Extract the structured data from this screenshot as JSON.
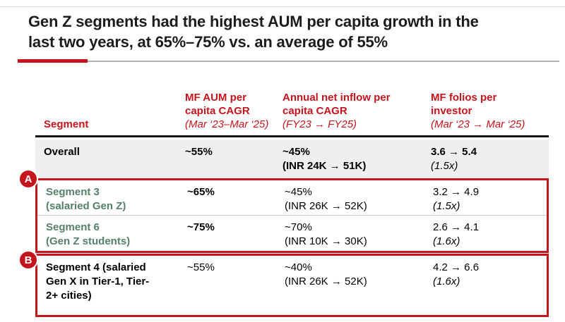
{
  "colors": {
    "accent_red": "#c4151d",
    "segment_green": "#568069",
    "overall_row_gray": "#efefef",
    "title_black": "#1c1c1c"
  },
  "header": {
    "title": "Gen Z segments had the highest AUM per capita growth in the\nlast two years, at 65%–75% vs. an average of 55%"
  },
  "table": {
    "headers": {
      "segment": "Segment",
      "col2_label": "MF AUM per capita CAGR",
      "col2_period": "(Mar ‘23–Mar ‘25)",
      "col3_label": "Annual net inflow per capita CAGR",
      "col3_period": "(FY23 → FY25)",
      "col4_label": "MF folios per investor",
      "col4_period": "(Mar ‘23 → Mar ‘25)"
    },
    "rows": {
      "overall": {
        "name": "Overall",
        "aum_cagr": "~55%",
        "inflow": "~45%\n(INR 24K → 51K)",
        "folios": "3.6 → 5.4",
        "folios_mult": "(1.5x)"
      },
      "segment3": {
        "name": "Segment 3\n(salaried Gen Z)",
        "aum_cagr": "~65%",
        "inflow": "~45%\n(INR 26K → 52K)",
        "folios": "3.2 → 4.9",
        "folios_mult": "(1.5x)"
      },
      "segment6": {
        "name": "Segment 6\n(Gen Z students)",
        "aum_cagr": "~75%",
        "inflow": "~70%\n(INR 10K → 30K)",
        "folios": "2.6 → 4.1",
        "folios_mult": "(1.6x)"
      },
      "segment4": {
        "name": "Segment 4 (salaried\nGen X in Tier-1, Tier-\n2+ cities)",
        "aum_cagr": "~55%",
        "inflow": "~40%\n(INR 26K → 52K)",
        "folios": "4.2 → 6.6",
        "folios_mult": "(1.6x)"
      }
    },
    "badges": {
      "a": "A",
      "b": "B"
    }
  }
}
